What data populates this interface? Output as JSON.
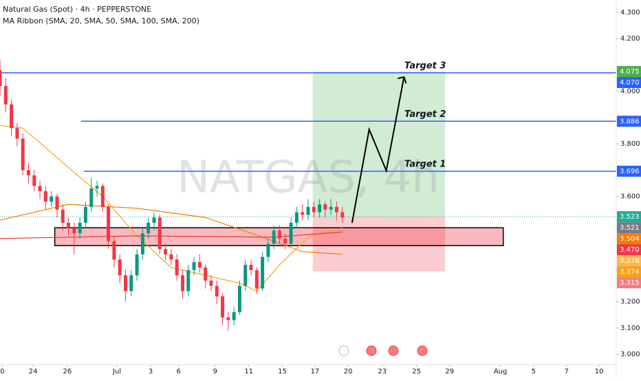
{
  "chart_data": {
    "type": "candlestick",
    "title": "Natural Gas (Spot) · 4h · PEPPERSTONE",
    "subtitle": "MA Ribbon (SMA, 20, SMA, 50, SMA, 100, SMA, 200)",
    "watermark": "NATGAS, 4h",
    "up_color": "#089981",
    "down_color": "#f23645",
    "x": [
      0,
      1,
      2,
      3,
      4,
      5,
      6,
      7,
      8,
      9,
      10,
      11,
      12,
      13,
      14,
      15,
      16,
      17,
      18,
      19,
      20,
      21,
      22,
      23,
      24,
      25,
      26,
      27,
      28,
      29,
      30,
      31,
      32,
      33,
      34,
      35,
      36,
      37,
      38,
      39,
      40,
      41,
      42,
      43,
      44,
      45,
      46,
      47,
      48,
      49,
      50,
      51,
      52,
      53,
      54,
      55,
      56,
      57,
      58,
      59,
      60
    ],
    "open": [
      4.08,
      4.02,
      3.95,
      3.86,
      3.82,
      3.7,
      3.68,
      3.64,
      3.62,
      3.58,
      3.6,
      3.55,
      3.5,
      3.48,
      3.46,
      3.5,
      3.56,
      3.63,
      3.64,
      3.56,
      3.43,
      3.36,
      3.3,
      3.24,
      3.3,
      3.38,
      3.46,
      3.5,
      3.52,
      3.4,
      3.38,
      3.36,
      3.3,
      3.24,
      3.32,
      3.35,
      3.33,
      3.28,
      3.26,
      3.22,
      3.14,
      3.13,
      3.16,
      3.26,
      3.34,
      3.32,
      3.25,
      3.37,
      3.42,
      3.47,
      3.44,
      3.42,
      3.5,
      3.54,
      3.53,
      3.56,
      3.54,
      3.57,
      3.55,
      3.56,
      3.54
    ],
    "high": [
      4.12,
      4.05,
      3.97,
      3.88,
      3.84,
      3.73,
      3.7,
      3.66,
      3.64,
      3.62,
      3.61,
      3.57,
      3.52,
      3.5,
      3.52,
      3.58,
      3.67,
      3.66,
      3.65,
      3.57,
      3.45,
      3.38,
      3.32,
      3.32,
      3.4,
      3.48,
      3.52,
      3.54,
      3.53,
      3.42,
      3.4,
      3.38,
      3.32,
      3.34,
      3.37,
      3.38,
      3.34,
      3.3,
      3.28,
      3.23,
      3.16,
      3.18,
      3.28,
      3.36,
      3.36,
      3.33,
      3.39,
      3.44,
      3.49,
      3.49,
      3.46,
      3.52,
      3.56,
      3.57,
      3.59,
      3.58,
      3.59,
      3.58,
      3.59,
      3.58,
      3.56
    ],
    "low": [
      3.98,
      3.92,
      3.83,
      3.79,
      3.68,
      3.65,
      3.62,
      3.59,
      3.55,
      3.56,
      3.52,
      3.47,
      3.45,
      3.38,
      3.44,
      3.48,
      3.54,
      3.6,
      3.54,
      3.4,
      3.33,
      3.27,
      3.2,
      3.22,
      3.28,
      3.36,
      3.44,
      3.47,
      3.38,
      3.36,
      3.34,
      3.28,
      3.21,
      3.22,
      3.3,
      3.31,
      3.25,
      3.24,
      3.19,
      3.11,
      3.09,
      3.11,
      3.15,
      3.24,
      3.3,
      3.23,
      3.24,
      3.35,
      3.4,
      3.42,
      3.4,
      3.41,
      3.48,
      3.51,
      3.51,
      3.52,
      3.52,
      3.52,
      3.53,
      3.51,
      3.5
    ],
    "close": [
      4.02,
      3.95,
      3.86,
      3.82,
      3.7,
      3.68,
      3.64,
      3.62,
      3.58,
      3.6,
      3.55,
      3.5,
      3.48,
      3.46,
      3.5,
      3.56,
      3.63,
      3.64,
      3.56,
      3.43,
      3.36,
      3.3,
      3.24,
      3.3,
      3.38,
      3.46,
      3.5,
      3.52,
      3.4,
      3.38,
      3.36,
      3.3,
      3.24,
      3.32,
      3.35,
      3.33,
      3.28,
      3.26,
      3.22,
      3.14,
      3.13,
      3.16,
      3.26,
      3.34,
      3.32,
      3.25,
      3.37,
      3.42,
      3.47,
      3.44,
      3.42,
      3.5,
      3.54,
      3.53,
      3.56,
      3.54,
      3.57,
      3.55,
      3.56,
      3.54,
      3.52
    ],
    "series": [
      {
        "name": "SMA 20",
        "color": "#f7a21b",
        "x": [
          0,
          4,
          12,
          18,
          24,
          30,
          36,
          42,
          45,
          49,
          54,
          60
        ],
        "values": [
          3.87,
          3.86,
          3.71,
          3.6,
          3.45,
          3.33,
          3.3,
          3.27,
          3.24,
          3.34,
          3.445,
          3.48
        ]
      },
      {
        "name": "SMA 50",
        "color": "#f57c00",
        "x": [
          0,
          12,
          24,
          36,
          48,
          53,
          60
        ],
        "values": [
          3.51,
          3.57,
          3.555,
          3.52,
          3.43,
          3.39,
          3.38
        ]
      },
      {
        "name": "SMA 100",
        "color": "#e53935",
        "x": [
          0,
          24,
          48,
          60
        ],
        "values": [
          3.44,
          3.45,
          3.445,
          3.465
        ]
      }
    ],
    "levels": [
      {
        "value": 4.07,
        "label": "Target 3",
        "x_start": 0,
        "color": "#2962ff"
      },
      {
        "value": 3.886,
        "label": "Target 2",
        "x_start": 14.2,
        "color": "#2962ff"
      },
      {
        "value": 3.696,
        "label": "Target 1",
        "x_start": 14.7,
        "color": "#2962ff"
      }
    ],
    "zone": {
      "top": 3.481,
      "bottom": 3.413,
      "x_start": 9.6,
      "x_end": 88.2
    },
    "position": {
      "entry": 3.523,
      "target": 4.075,
      "stop": 3.315,
      "x_start": 54.8,
      "x_end": 78
    },
    "projection": {
      "x": [
        61.7,
        64.7,
        67.7,
        70.8
      ],
      "values": [
        3.4996,
        3.855,
        3.698,
        4.054
      ]
    },
    "price_labels": [
      {
        "value": 4.075,
        "label": "4.075",
        "color": "#4caf50"
      },
      {
        "value": 4.07,
        "label": "4.070",
        "color": "#2962ff"
      },
      {
        "value": 3.886,
        "label": "3.886",
        "color": "#2962ff"
      },
      {
        "value": 3.696,
        "label": "3.696",
        "color": "#2962ff"
      },
      {
        "value": 3.523,
        "label": "3.523",
        "color": "#22ab94"
      },
      {
        "value": 3.521,
        "label": "3.521",
        "color": "#787b86"
      },
      {
        "value": 3.504,
        "label": "3.504",
        "color": "#f57c00"
      },
      {
        "value": 3.47,
        "label": "3.470",
        "color": "#f23645"
      },
      {
        "value": 3.378,
        "label": "3.378",
        "color": "#ffb74d"
      },
      {
        "value": 3.374,
        "label": "3.374",
        "color": "#f7a21b"
      },
      {
        "value": 3.315,
        "label": "3.315",
        "color": "#f77c80"
      }
    ],
    "xlim": [
      0,
      108
    ],
    "ylim": [
      2.961,
      4.347
    ],
    "xticks": [
      {
        "value": 0.4,
        "label": "0"
      },
      {
        "value": 5.8,
        "label": "24"
      },
      {
        "value": 11.8,
        "label": "26"
      },
      {
        "value": 20.5,
        "label": "Jul"
      },
      {
        "value": 26.4,
        "label": "3"
      },
      {
        "value": 31.3,
        "label": "6"
      },
      {
        "value": 37.7,
        "label": "9"
      },
      {
        "value": 43.6,
        "label": "11"
      },
      {
        "value": 49.5,
        "label": "15"
      },
      {
        "value": 55.2,
        "label": "17"
      },
      {
        "value": 61,
        "label": "20"
      },
      {
        "value": 67,
        "label": "23"
      },
      {
        "value": 73,
        "label": "25"
      },
      {
        "value": 78.8,
        "label": "29"
      },
      {
        "value": 87.7,
        "label": "Aug"
      },
      {
        "value": 93.5,
        "label": "5"
      },
      {
        "value": 99.3,
        "label": "7"
      },
      {
        "value": 105,
        "label": "10"
      }
    ],
    "yticks": [
      {
        "value": 4.3,
        "label": "4.300"
      },
      {
        "value": 4.2,
        "label": "4.200"
      },
      {
        "value": 4.0,
        "label": "4.000"
      },
      {
        "value": 3.8,
        "label": "3.800"
      },
      {
        "value": 3.6,
        "label": "3.600"
      },
      {
        "value": 3.2,
        "label": "3.200"
      },
      {
        "value": 3.1,
        "label": "3.100"
      },
      {
        "value": 3.0,
        "label": "3.000"
      }
    ]
  }
}
